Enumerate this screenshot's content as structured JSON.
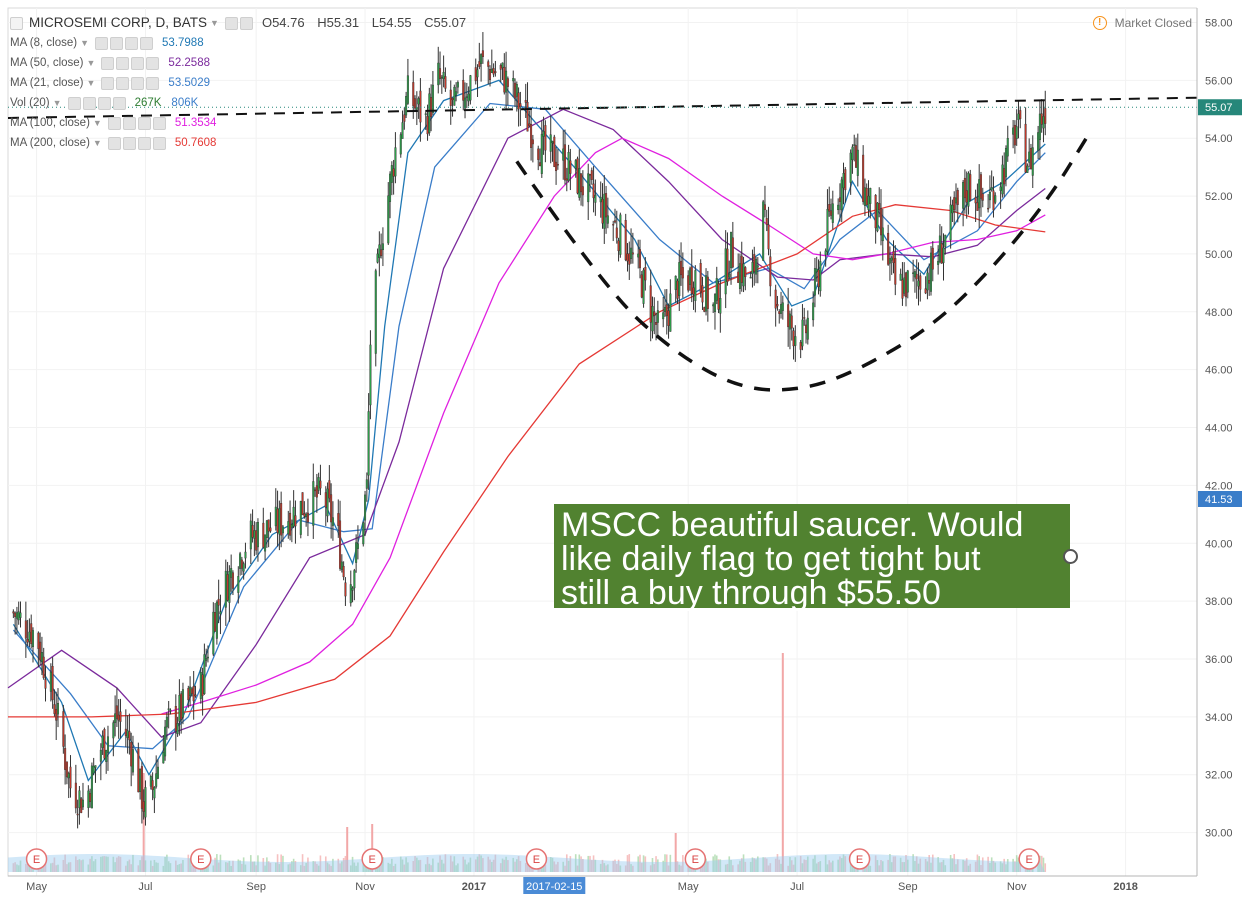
{
  "header": {
    "title": "MICROSEMI CORP, D, BATS",
    "ohlc": {
      "open": "O54.76",
      "high": "H55.31",
      "low": "L54.55",
      "close": "C55.07"
    },
    "market_status": "Market Closed"
  },
  "indicators": [
    {
      "name": "MA (8, close)",
      "value": "53.7988",
      "color": "#1f78b4"
    },
    {
      "name": "MA (50, close)",
      "value": "52.2588",
      "color": "#7b2a9c"
    },
    {
      "name": "MA (21, close)",
      "value": "53.5029",
      "color": "#3a7dc9"
    },
    {
      "name": "Vol (20)",
      "value": "267K",
      "value2": "806K",
      "color": "#2e7d32",
      "color2": "#3a7dc9"
    },
    {
      "name": "MA (100, close)",
      "value": "51.3534",
      "color": "#e020e0"
    },
    {
      "name": "MA (200, close)",
      "value": "50.7608",
      "color": "#e53935"
    }
  ],
  "annotation": {
    "text_lines": [
      "MSCC beautiful saucer. Would",
      "like daily flag to get tight but",
      "still a buy through $55.50"
    ]
  },
  "chart_data": {
    "type": "candlestick",
    "title": "MICROSEMI CORP, D, BATS",
    "y_axis": {
      "range": [
        28.5,
        58.5
      ],
      "ticks": [
        "30.00",
        "32.00",
        "34.00",
        "36.00",
        "38.00",
        "40.00",
        "42.00",
        "44.00",
        "46.00",
        "48.00",
        "50.00",
        "52.00",
        "54.00",
        "56.00",
        "58.00"
      ]
    },
    "x_axis": {
      "range": [
        "2016-04-15",
        "2018-02-10"
      ],
      "ticks": [
        "May",
        "Jul",
        "Sep",
        "Nov",
        "2017",
        "2017-02-15",
        "May",
        "Jul",
        "Sep",
        "Nov",
        "2018"
      ],
      "highlighted_tick": "2017-02-15"
    },
    "price_labels": [
      {
        "value": 55.07,
        "text": "55.07",
        "color": "#26877a"
      },
      {
        "value": 41.53,
        "text": "41.53",
        "color": "#3a7dc9"
      }
    ],
    "price_anchors": [
      [
        "2016-04-18",
        37.6
      ],
      [
        "2016-05-01",
        36.8
      ],
      [
        "2016-05-12",
        34.2
      ],
      [
        "2016-05-20",
        31.6
      ],
      [
        "2016-05-28",
        31.0
      ],
      [
        "2016-06-05",
        32.8
      ],
      [
        "2016-06-15",
        34.0
      ],
      [
        "2016-06-22",
        33.2
      ],
      [
        "2016-06-30",
        31.0
      ],
      [
        "2016-07-05",
        31.5
      ],
      [
        "2016-07-12",
        33.6
      ],
      [
        "2016-07-22",
        34.3
      ],
      [
        "2016-08-01",
        35.0
      ],
      [
        "2016-08-08",
        37.5
      ],
      [
        "2016-08-18",
        39.0
      ],
      [
        "2016-08-28",
        40.2
      ],
      [
        "2016-09-12",
        40.6
      ],
      [
        "2016-09-25",
        41.2
      ],
      [
        "2016-10-08",
        41.7
      ],
      [
        "2016-10-16",
        40.5
      ],
      [
        "2016-10-22",
        38.3
      ],
      [
        "2016-10-28",
        39.8
      ],
      [
        "2016-11-02",
        41.9
      ],
      [
        "2016-11-04",
        47.0
      ],
      [
        "2016-11-10",
        50.5
      ],
      [
        "2016-11-18",
        53.6
      ],
      [
        "2016-11-25",
        55.5
      ],
      [
        "2016-12-05",
        54.6
      ],
      [
        "2016-12-12",
        56.1
      ],
      [
        "2016-12-20",
        55.0
      ],
      [
        "2017-01-05",
        56.6
      ],
      [
        "2017-01-18",
        56.1
      ],
      [
        "2017-01-28",
        55.0
      ],
      [
        "2017-02-08",
        53.6
      ],
      [
        "2017-02-20",
        53.2
      ],
      [
        "2017-03-05",
        52.2
      ],
      [
        "2017-03-15",
        51.5
      ],
      [
        "2017-03-25",
        50.6
      ],
      [
        "2017-04-05",
        49.1
      ],
      [
        "2017-04-15",
        47.2
      ],
      [
        "2017-04-25",
        49.0
      ],
      [
        "2017-05-05",
        49.3
      ],
      [
        "2017-05-15",
        48.1
      ],
      [
        "2017-05-25",
        50.1
      ],
      [
        "2017-06-05",
        48.9
      ],
      [
        "2017-06-12",
        51.3
      ],
      [
        "2017-06-18",
        48.6
      ],
      [
        "2017-06-25",
        47.6
      ],
      [
        "2017-07-05",
        47.1
      ],
      [
        "2017-07-12",
        49.1
      ],
      [
        "2017-07-20",
        51.5
      ],
      [
        "2017-08-01",
        53.5
      ],
      [
        "2017-08-08",
        52.1
      ],
      [
        "2017-08-15",
        51.1
      ],
      [
        "2017-08-25",
        48.9
      ],
      [
        "2017-09-05",
        49.0
      ],
      [
        "2017-09-15",
        49.5
      ],
      [
        "2017-09-25",
        51.0
      ],
      [
        "2017-10-05",
        52.4
      ],
      [
        "2017-10-15",
        51.7
      ],
      [
        "2017-10-25",
        53.0
      ],
      [
        "2017-11-01",
        54.4
      ],
      [
        "2017-11-08",
        53.1
      ],
      [
        "2017-11-14",
        54.6
      ],
      [
        "2017-11-17",
        55.07
      ]
    ],
    "series": [
      {
        "name": "MA (8, close)",
        "color": "#1f78b4",
        "points": [
          [
            "2016-04-18",
            37.2
          ],
          [
            "2016-05-15",
            34.5
          ],
          [
            "2016-05-30",
            31.8
          ],
          [
            "2016-06-20",
            33.5
          ],
          [
            "2016-07-03",
            32.0
          ],
          [
            "2016-07-22",
            34.0
          ],
          [
            "2016-08-15",
            38.0
          ],
          [
            "2016-09-10",
            40.3
          ],
          [
            "2016-10-10",
            41.3
          ],
          [
            "2016-10-25",
            39.3
          ],
          [
            "2016-11-03",
            41.5
          ],
          [
            "2016-11-12",
            47.5
          ],
          [
            "2016-11-25",
            53.5
          ],
          [
            "2016-12-15",
            55.3
          ],
          [
            "2017-01-15",
            56.0
          ],
          [
            "2017-02-05",
            54.5
          ],
          [
            "2017-03-01",
            52.8
          ],
          [
            "2017-04-01",
            50.5
          ],
          [
            "2017-04-20",
            48.2
          ],
          [
            "2017-05-15",
            49.0
          ],
          [
            "2017-06-10",
            50.0
          ],
          [
            "2017-06-28",
            48.2
          ],
          [
            "2017-07-10",
            48.5
          ],
          [
            "2017-08-01",
            52.5
          ],
          [
            "2017-08-20",
            50.5
          ],
          [
            "2017-09-10",
            49.3
          ],
          [
            "2017-10-05",
            51.8
          ],
          [
            "2017-10-25",
            52.5
          ],
          [
            "2017-11-17",
            53.8
          ]
        ]
      },
      {
        "name": "MA (21, close)",
        "color": "#3a7dc9",
        "points": [
          [
            "2016-04-18",
            37.0
          ],
          [
            "2016-05-20",
            34.8
          ],
          [
            "2016-06-10",
            33.0
          ],
          [
            "2016-07-05",
            32.9
          ],
          [
            "2016-07-25",
            34.0
          ],
          [
            "2016-08-25",
            38.5
          ],
          [
            "2016-09-25",
            40.8
          ],
          [
            "2016-10-20",
            40.4
          ],
          [
            "2016-11-05",
            40.5
          ],
          [
            "2016-11-20",
            47.5
          ],
          [
            "2016-12-10",
            53.0
          ],
          [
            "2017-01-10",
            55.2
          ],
          [
            "2017-02-10",
            55.0
          ],
          [
            "2017-03-10",
            53.0
          ],
          [
            "2017-04-15",
            50.5
          ],
          [
            "2017-05-15",
            49.0
          ],
          [
            "2017-06-15",
            49.5
          ],
          [
            "2017-07-05",
            48.8
          ],
          [
            "2017-07-25",
            50.5
          ],
          [
            "2017-08-15",
            51.5
          ],
          [
            "2017-09-10",
            49.8
          ],
          [
            "2017-10-10",
            50.8
          ],
          [
            "2017-11-01",
            52.5
          ],
          [
            "2017-11-17",
            53.5
          ]
        ]
      },
      {
        "name": "MA (50, close)",
        "color": "#7b2a9c",
        "points": [
          [
            "2016-04-15",
            35.0
          ],
          [
            "2016-05-15",
            36.3
          ],
          [
            "2016-06-15",
            35.0
          ],
          [
            "2016-07-10",
            33.3
          ],
          [
            "2016-08-01",
            33.8
          ],
          [
            "2016-09-01",
            36.5
          ],
          [
            "2016-10-01",
            39.5
          ],
          [
            "2016-11-01",
            40.3
          ],
          [
            "2016-11-20",
            43.5
          ],
          [
            "2016-12-15",
            49.5
          ],
          [
            "2017-01-20",
            54.0
          ],
          [
            "2017-02-20",
            55.0
          ],
          [
            "2017-03-20",
            54.3
          ],
          [
            "2017-04-20",
            52.5
          ],
          [
            "2017-05-20",
            50.5
          ],
          [
            "2017-06-20",
            49.2
          ],
          [
            "2017-07-10",
            49.1
          ],
          [
            "2017-07-25",
            49.8
          ],
          [
            "2017-08-20",
            50.0
          ],
          [
            "2017-09-15",
            49.9
          ],
          [
            "2017-10-10",
            50.3
          ],
          [
            "2017-11-01",
            51.5
          ],
          [
            "2017-11-17",
            52.26
          ]
        ]
      },
      {
        "name": "MA (100, close)",
        "color": "#e020e0",
        "points": [
          [
            "2016-07-10",
            34.1
          ],
          [
            "2016-08-01",
            34.5
          ],
          [
            "2016-09-01",
            35.1
          ],
          [
            "2016-10-01",
            35.9
          ],
          [
            "2016-10-25",
            37.2
          ],
          [
            "2016-11-15",
            39.5
          ],
          [
            "2016-12-15",
            44.5
          ],
          [
            "2017-01-15",
            49.0
          ],
          [
            "2017-02-15",
            52.0
          ],
          [
            "2017-03-10",
            53.5
          ],
          [
            "2017-03-25",
            54.0
          ],
          [
            "2017-04-20",
            53.3
          ],
          [
            "2017-05-20",
            52.0
          ],
          [
            "2017-06-15",
            51.0
          ],
          [
            "2017-07-10",
            50.0
          ],
          [
            "2017-08-01",
            49.8
          ],
          [
            "2017-08-20",
            50.0
          ],
          [
            "2017-09-15",
            50.4
          ],
          [
            "2017-10-10",
            50.5
          ],
          [
            "2017-11-01",
            50.8
          ],
          [
            "2017-11-17",
            51.35
          ]
        ]
      },
      {
        "name": "MA (200, close)",
        "color": "#e53935",
        "points": [
          [
            "2016-04-15",
            34.0
          ],
          [
            "2016-06-01",
            34.0
          ],
          [
            "2016-07-15",
            34.1
          ],
          [
            "2016-09-01",
            34.5
          ],
          [
            "2016-10-15",
            35.3
          ],
          [
            "2016-11-15",
            36.8
          ],
          [
            "2016-12-15",
            39.7
          ],
          [
            "2017-01-20",
            43.0
          ],
          [
            "2017-03-01",
            46.2
          ],
          [
            "2017-04-15",
            48.0
          ],
          [
            "2017-05-20",
            49.0
          ],
          [
            "2017-07-01",
            50.0
          ],
          [
            "2017-08-01",
            51.3
          ],
          [
            "2017-08-25",
            51.7
          ],
          [
            "2017-09-25",
            51.5
          ],
          [
            "2017-10-20",
            51.0
          ],
          [
            "2017-11-17",
            50.76
          ]
        ]
      }
    ],
    "volume_spikes": [
      [
        "2016-06-30",
        33
      ],
      [
        "2016-10-22",
        15
      ],
      [
        "2016-11-05",
        16
      ],
      [
        "2017-06-23",
        73
      ],
      [
        "2017-04-24",
        13
      ]
    ],
    "earnings_markers": [
      "E",
      "E",
      "E",
      "E",
      "E",
      "E",
      "E"
    ],
    "earnings_dates": [
      "2016-05-01",
      "2016-08-01",
      "2016-11-05",
      "2017-02-05",
      "2017-05-05",
      "2017-08-05",
      "2017-11-08"
    ],
    "drawings": {
      "resistance_line": [
        [
          "2016-04-15",
          54.7
        ],
        [
          "2018-02-10",
          55.4
        ]
      ],
      "saucer": [
        [
          "2017-01-25",
          53.2
        ],
        [
          "2017-03-15",
          48.8
        ],
        [
          "2017-04-25",
          46.5
        ],
        [
          "2017-06-01",
          45.3
        ],
        [
          "2017-07-05",
          45.3
        ],
        [
          "2017-08-05",
          46.0
        ],
        [
          "2017-09-15",
          47.5
        ],
        [
          "2017-10-20",
          49.6
        ],
        [
          "2017-11-20",
          52.0
        ],
        [
          "2017-12-10",
          54.0
        ]
      ]
    }
  }
}
